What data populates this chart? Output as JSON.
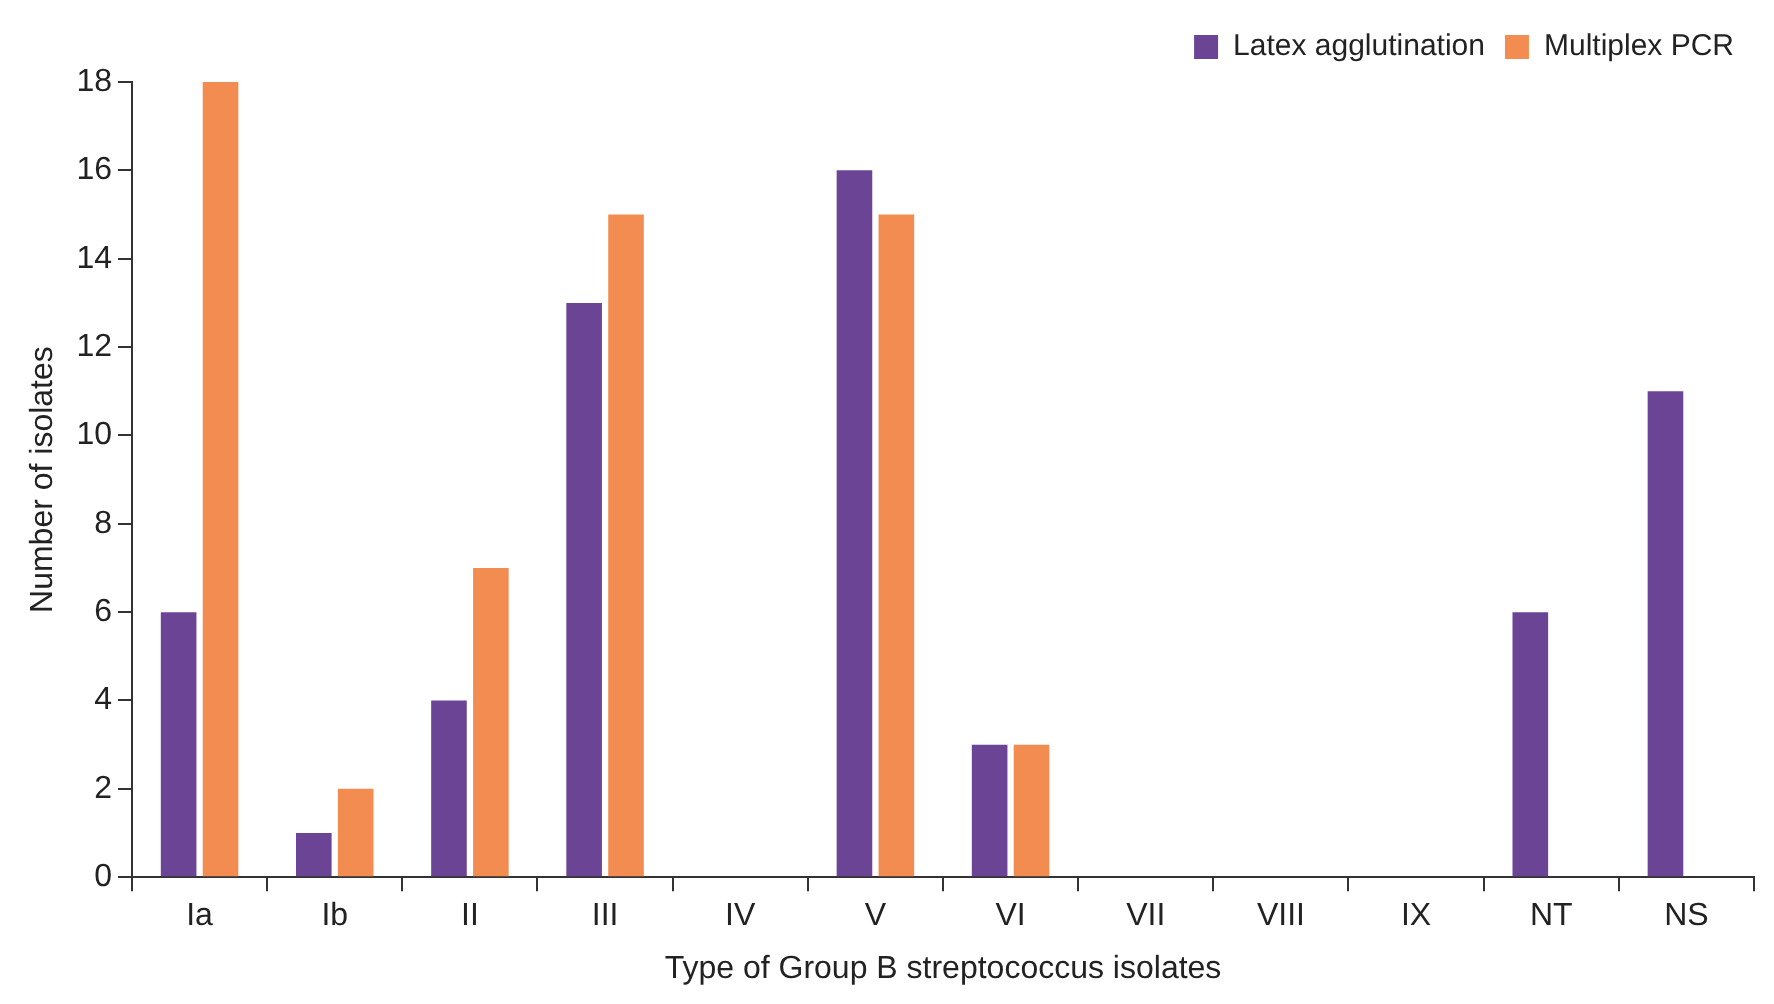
{
  "chart_data": {
    "type": "bar",
    "xlabel": "Type of Group B streptococcus isolates",
    "ylabel": "Number of isolates",
    "categories": [
      "Ia",
      "Ib",
      "II",
      "III",
      "IV",
      "V",
      "VI",
      "VII",
      "VIII",
      "IX",
      "NT",
      "NS"
    ],
    "series": [
      {
        "name": "Latex agglutination",
        "color": "#6b4496",
        "values": [
          6,
          1,
          4,
          13,
          0,
          16,
          3,
          0,
          0,
          0,
          6,
          11
        ]
      },
      {
        "name": "Multiplex PCR",
        "color": "#f28c50",
        "values": [
          18,
          2,
          7,
          15,
          0,
          15,
          3,
          0,
          0,
          0,
          0,
          0
        ]
      }
    ],
    "ylim": [
      0,
      18
    ],
    "yticks": [
      0,
      2,
      4,
      6,
      8,
      10,
      12,
      14,
      16,
      18
    ],
    "grid": false,
    "legend": "top right"
  }
}
